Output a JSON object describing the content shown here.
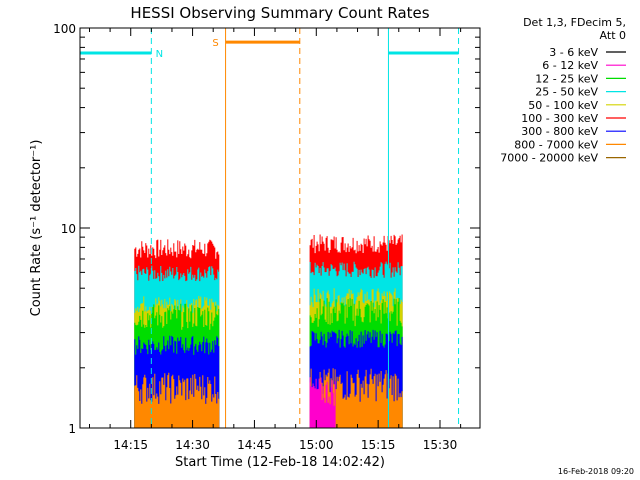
{
  "chart_data": {
    "type": "line",
    "title": "HESSI Observing Summary Count Rates",
    "xlabel": "Start Time (12-Feb-18 14:02:42)",
    "ylabel": "Count Rate (s⁻¹ detector⁻¹)",
    "yscale": "log",
    "ylim": [
      1,
      100
    ],
    "xlim_minutes": [
      0,
      97
    ],
    "x_tick_labels": [
      "14:15",
      "14:30",
      "14:45",
      "15:00",
      "15:15",
      "15:30"
    ],
    "x_tick_values_min": [
      12.3,
      27.3,
      42.3,
      57.3,
      72.3,
      87.3
    ],
    "y_tick_labels": [
      "1",
      "10",
      "100"
    ],
    "y_tick_values": [
      1,
      10,
      100
    ],
    "legend": {
      "header_line1": "Det 1,3, FDecim 5,",
      "header_line2": "Att 0",
      "placement": "right",
      "entries": [
        {
          "label": "3 - 6 keV",
          "color": "#000000"
        },
        {
          "label": "6 - 12 keV",
          "color": "#ff00cc"
        },
        {
          "label": "12 - 25 keV",
          "color": "#00dd00"
        },
        {
          "label": "25 - 50 keV",
          "color": "#00e5e5"
        },
        {
          "label": "50 - 100 keV",
          "color": "#d4d400"
        },
        {
          "label": "100 - 300 keV",
          "color": "#ff0000"
        },
        {
          "label": "300 - 800 keV",
          "color": "#0000ff"
        },
        {
          "label": "800 - 7000 keV",
          "color": "#ff8800"
        },
        {
          "label": "7000 - 20000 keV",
          "color": "#996600"
        }
      ]
    },
    "series": [
      {
        "name": "100 - 300 keV",
        "color": "#ff0000",
        "intervals": [
          [
            13.3,
            33.8,
            6.0,
            8.8
          ],
          [
            55.8,
            78.3,
            6.5,
            9.3
          ]
        ]
      },
      {
        "name": "25 - 50 keV",
        "color": "#00e5e5",
        "intervals": [
          [
            13.3,
            33.8,
            4.8,
            6.5
          ],
          [
            55.8,
            78.3,
            5.0,
            6.8
          ]
        ]
      },
      {
        "name": "50 - 100 keV",
        "color": "#d4d400",
        "intervals": [
          [
            13.3,
            33.8,
            3.3,
            4.6
          ],
          [
            55.8,
            78.3,
            3.5,
            5.0
          ]
        ]
      },
      {
        "name": "12 - 25 keV",
        "color": "#00dd00",
        "intervals": [
          [
            13.3,
            33.8,
            2.5,
            4.2
          ],
          [
            55.8,
            78.3,
            2.5,
            4.5
          ]
        ]
      },
      {
        "name": "300 - 800 keV",
        "color": "#0000ff",
        "intervals": [
          [
            13.3,
            33.8,
            2.0,
            2.9
          ],
          [
            55.8,
            78.3,
            2.2,
            3.1
          ]
        ]
      },
      {
        "name": "800 - 7000 keV",
        "color": "#ff8800",
        "intervals": [
          [
            13.3,
            33.8,
            1.0,
            1.9
          ],
          [
            55.8,
            78.3,
            1.0,
            2.0
          ]
        ]
      },
      {
        "name": "6 - 12 keV",
        "color": "#ff00cc",
        "intervals": [
          [
            55.8,
            62.0,
            1.0,
            1.8
          ]
        ]
      }
    ],
    "flags": [
      {
        "label": "N",
        "color": "#00e5e5",
        "level": 75,
        "segments": [
          [
            0,
            17.3
          ],
          [
            74.8,
            91.8
          ]
        ]
      },
      {
        "label": "S",
        "color": "#ff8800",
        "level": 85,
        "segments": [
          [
            35.3,
            53.3
          ]
        ]
      }
    ],
    "markers": [
      {
        "color": "#00e5e5",
        "at": 0,
        "style": "solid"
      },
      {
        "color": "#00e5e5",
        "at": 17.3,
        "style": "dashed"
      },
      {
        "color": "#ff8800",
        "at": 35.3,
        "style": "solid"
      },
      {
        "color": "#ff8800",
        "at": 53.3,
        "style": "dashed"
      },
      {
        "color": "#00e5e5",
        "at": 74.8,
        "style": "solid"
      },
      {
        "color": "#00e5e5",
        "at": 91.8,
        "style": "dashed"
      }
    ]
  },
  "footer_date": "16-Feb-2018 09:20"
}
